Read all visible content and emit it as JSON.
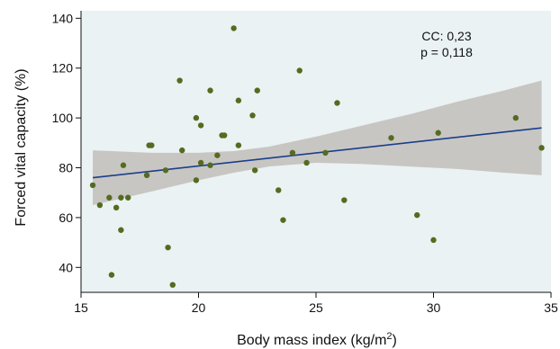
{
  "chart_data": {
    "type": "scatter",
    "title": "",
    "xlabel": "Body mass index (kg/m",
    "xlabel_sup": "2",
    "xlabel_close": ")",
    "ylabel": "Forced vital capacity (%)",
    "xlim": [
      15,
      35
    ],
    "ylim": [
      30,
      143
    ],
    "xticks": [
      15,
      20,
      25,
      30,
      35
    ],
    "yticks": [
      40,
      60,
      80,
      100,
      120,
      140
    ],
    "xtick_labels": [
      "15",
      "20",
      "25",
      "30",
      "35"
    ],
    "ytick_labels": [
      "40",
      "60",
      "80",
      "100",
      "120",
      "140"
    ],
    "grid": false,
    "annotations": [
      "CC: 0,23",
      "p = 0,118"
    ],
    "colors": {
      "plot_background": "#eaf2f3",
      "points": "#556b1f",
      "fit_line": "#1a3e8c",
      "confidence_band": "#c8c6c2"
    },
    "points": [
      {
        "x": 15.5,
        "y": 73
      },
      {
        "x": 15.8,
        "y": 65
      },
      {
        "x": 16.2,
        "y": 68
      },
      {
        "x": 16.3,
        "y": 37
      },
      {
        "x": 16.5,
        "y": 64
      },
      {
        "x": 16.7,
        "y": 68
      },
      {
        "x": 16.7,
        "y": 55
      },
      {
        "x": 16.8,
        "y": 81
      },
      {
        "x": 17.0,
        "y": 68
      },
      {
        "x": 17.8,
        "y": 77
      },
      {
        "x": 17.9,
        "y": 89
      },
      {
        "x": 18.0,
        "y": 89
      },
      {
        "x": 18.6,
        "y": 79
      },
      {
        "x": 18.7,
        "y": 48
      },
      {
        "x": 18.9,
        "y": 33
      },
      {
        "x": 19.2,
        "y": 115
      },
      {
        "x": 19.3,
        "y": 87
      },
      {
        "x": 19.9,
        "y": 100
      },
      {
        "x": 19.9,
        "y": 75
      },
      {
        "x": 20.1,
        "y": 97
      },
      {
        "x": 20.1,
        "y": 82
      },
      {
        "x": 20.5,
        "y": 111
      },
      {
        "x": 20.5,
        "y": 81
      },
      {
        "x": 20.8,
        "y": 85
      },
      {
        "x": 21.0,
        "y": 93
      },
      {
        "x": 21.1,
        "y": 93
      },
      {
        "x": 21.5,
        "y": 136
      },
      {
        "x": 21.7,
        "y": 107
      },
      {
        "x": 21.7,
        "y": 89
      },
      {
        "x": 22.3,
        "y": 101
      },
      {
        "x": 22.4,
        "y": 79
      },
      {
        "x": 22.5,
        "y": 111
      },
      {
        "x": 23.4,
        "y": 71
      },
      {
        "x": 23.6,
        "y": 59
      },
      {
        "x": 24.0,
        "y": 86
      },
      {
        "x": 24.3,
        "y": 119
      },
      {
        "x": 24.6,
        "y": 82
      },
      {
        "x": 25.4,
        "y": 86
      },
      {
        "x": 25.9,
        "y": 106
      },
      {
        "x": 26.2,
        "y": 67
      },
      {
        "x": 28.2,
        "y": 92
      },
      {
        "x": 29.3,
        "y": 61
      },
      {
        "x": 30.0,
        "y": 51
      },
      {
        "x": 30.2,
        "y": 94
      },
      {
        "x": 33.5,
        "y": 100
      },
      {
        "x": 34.6,
        "y": 88
      }
    ],
    "fit_line": [
      {
        "x": 15.5,
        "y": 76
      },
      {
        "x": 34.6,
        "y": 96
      }
    ],
    "confidence_band": {
      "x": [
        15.5,
        18,
        20,
        21.5,
        23,
        25,
        27,
        29,
        31,
        33,
        34.6
      ],
      "upper": [
        87,
        86,
        86,
        86.7,
        88.5,
        92.5,
        97,
        101.5,
        106.5,
        111,
        115
      ],
      "lower": [
        65,
        70.5,
        75,
        78,
        80.5,
        82,
        81.5,
        80.5,
        79.5,
        78,
        77
      ]
    }
  }
}
